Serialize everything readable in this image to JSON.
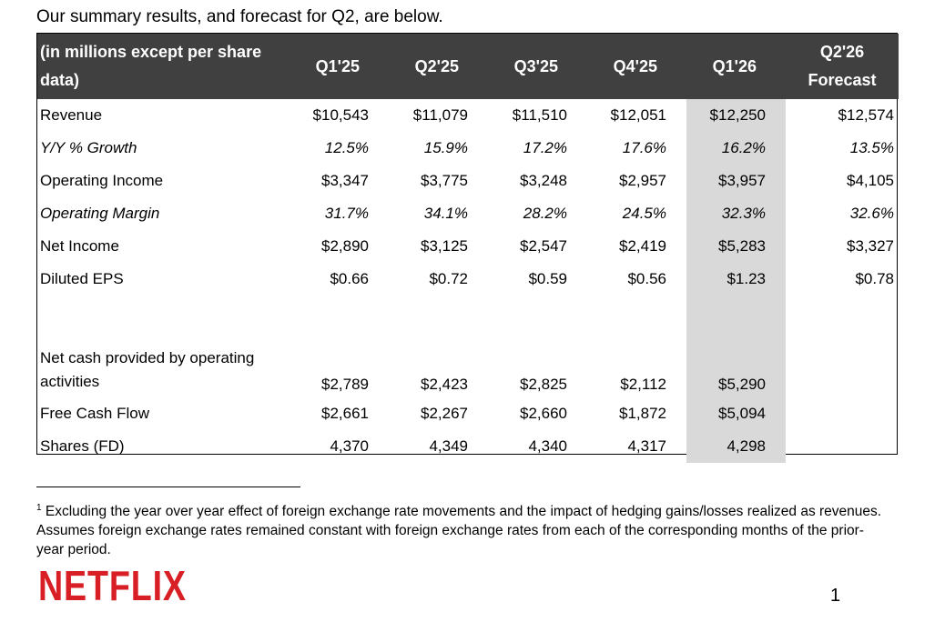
{
  "intro_text": "Our summary results, and forecast for Q2, are below.",
  "table": {
    "header_label_line1": "(in millions except per share",
    "header_label_line2": "data)",
    "periods": [
      "Q1'25",
      "Q2'25",
      "Q3'25",
      "Q4'25",
      "Q1'26"
    ],
    "forecast_header_line1": "Q2'26",
    "forecast_header_line2": "Forecast",
    "highlighted_period": "Q1'26",
    "rows": [
      {
        "label": "Revenue",
        "style": "normal",
        "values": [
          "$10,543",
          "$11,079",
          "$11,510",
          "$12,051",
          "$12,250"
        ],
        "forecast": "$12,574"
      },
      {
        "label": "Y/Y % Growth",
        "style": "italic",
        "values": [
          "12.5%",
          "15.9%",
          "17.2%",
          "17.6%",
          "16.2%"
        ],
        "forecast": "13.5%"
      },
      {
        "label": "Operating Income",
        "style": "normal",
        "values": [
          "$3,347",
          "$3,775",
          "$3,248",
          "$2,957",
          "$3,957"
        ],
        "forecast": "$4,105"
      },
      {
        "label": "Operating Margin",
        "style": "italic",
        "values": [
          "31.7%",
          "34.1%",
          "28.2%",
          "24.5%",
          "32.3%"
        ],
        "forecast": "32.6%"
      },
      {
        "label": "Net Income",
        "style": "normal",
        "values": [
          "$2,890",
          "$3,125",
          "$2,547",
          "$2,419",
          "$5,283"
        ],
        "forecast": "$3,327"
      },
      {
        "label": "Diluted EPS",
        "style": "normal",
        "values": [
          "$0.66",
          "$0.72",
          "$0.59",
          "$0.56",
          "$1.23"
        ],
        "forecast": "$0.78"
      }
    ],
    "cash_rows": [
      {
        "label_line1": "Net cash provided by operating",
        "label_line2": "activities",
        "values": [
          "$2,789",
          "$2,423",
          "$2,825",
          "$2,112",
          "$5,290"
        ],
        "forecast": ""
      },
      {
        "label": "Free Cash Flow",
        "values": [
          "$2,661",
          "$2,267",
          "$2,660",
          "$1,872",
          "$5,094"
        ],
        "forecast": ""
      },
      {
        "label": "Shares (FD)",
        "values": [
          "4,370",
          "4,349",
          "4,340",
          "4,317",
          "4,298"
        ],
        "forecast": ""
      }
    ]
  },
  "footnote": {
    "marker": "1",
    "text": "Excluding the year over year effect of foreign exchange rate movements and the impact of hedging gains/losses realized as revenues. Assumes foreign exchange rates remained constant with foreign exchange rates from each of the corresponding months of the prior-year period."
  },
  "logo_text": "NETFLIX",
  "page_number": "1",
  "colors": {
    "header_bg": "#404040",
    "highlight_bg": "#d9d9d9",
    "logo_red": "#d81f26"
  }
}
